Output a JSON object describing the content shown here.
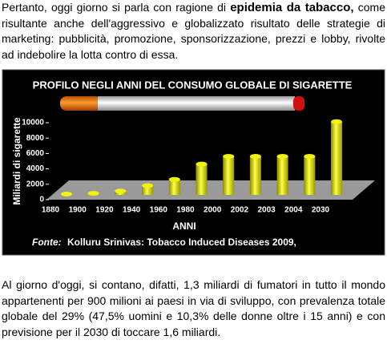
{
  "intro": {
    "text_start": "Pertanto, oggi giorno si parla con ragione di ",
    "emphasis": "epidemia da tabacco,",
    "text_end": " come risultante anche dell'aggressivo e globalizzato risultato delle strategie di marketing: pubblicità, promozione, sponsorizzazione, prezzi e lobby, rivolte ad indebolire la lotta contro di essa."
  },
  "chart_data": {
    "type": "bar",
    "title": "PROFILO NEGLI ANNI DEL CONSUMO GLOBALE DI SIGARETTE",
    "y_label": "Miliardi di sigarette",
    "x_label": "ANNI",
    "source_label": "Fonte:",
    "source_text": "Kolluru Srinivas: Tobacco Induced Diseases 2009,",
    "categories": [
      "1880",
      "1900",
      "1920",
      "1940",
      "1960",
      "1980",
      "2000",
      "2002",
      "2003",
      "2004",
      "2030"
    ],
    "values": [
      100,
      200,
      500,
      1200,
      2000,
      4000,
      5000,
      5000,
      5000,
      5000,
      9500
    ],
    "color": "#f2f20a",
    "ylim": [
      0,
      10000
    ],
    "yticks": [
      0,
      2000,
      4000,
      6000,
      8000,
      10000
    ]
  },
  "closing": "Al giorno d'oggi, si contano, difatti, 1,3 miliardi di fumatori in tutto il mondo appartenenti per 900 milioni ai paesi in via di sviluppo, con prevalenza totale globale del 29% (47,5% uomini e 10,3% delle donne oltre i 15 anni) e con previsione per il 2030 di toccare 1,6 miliardi."
}
